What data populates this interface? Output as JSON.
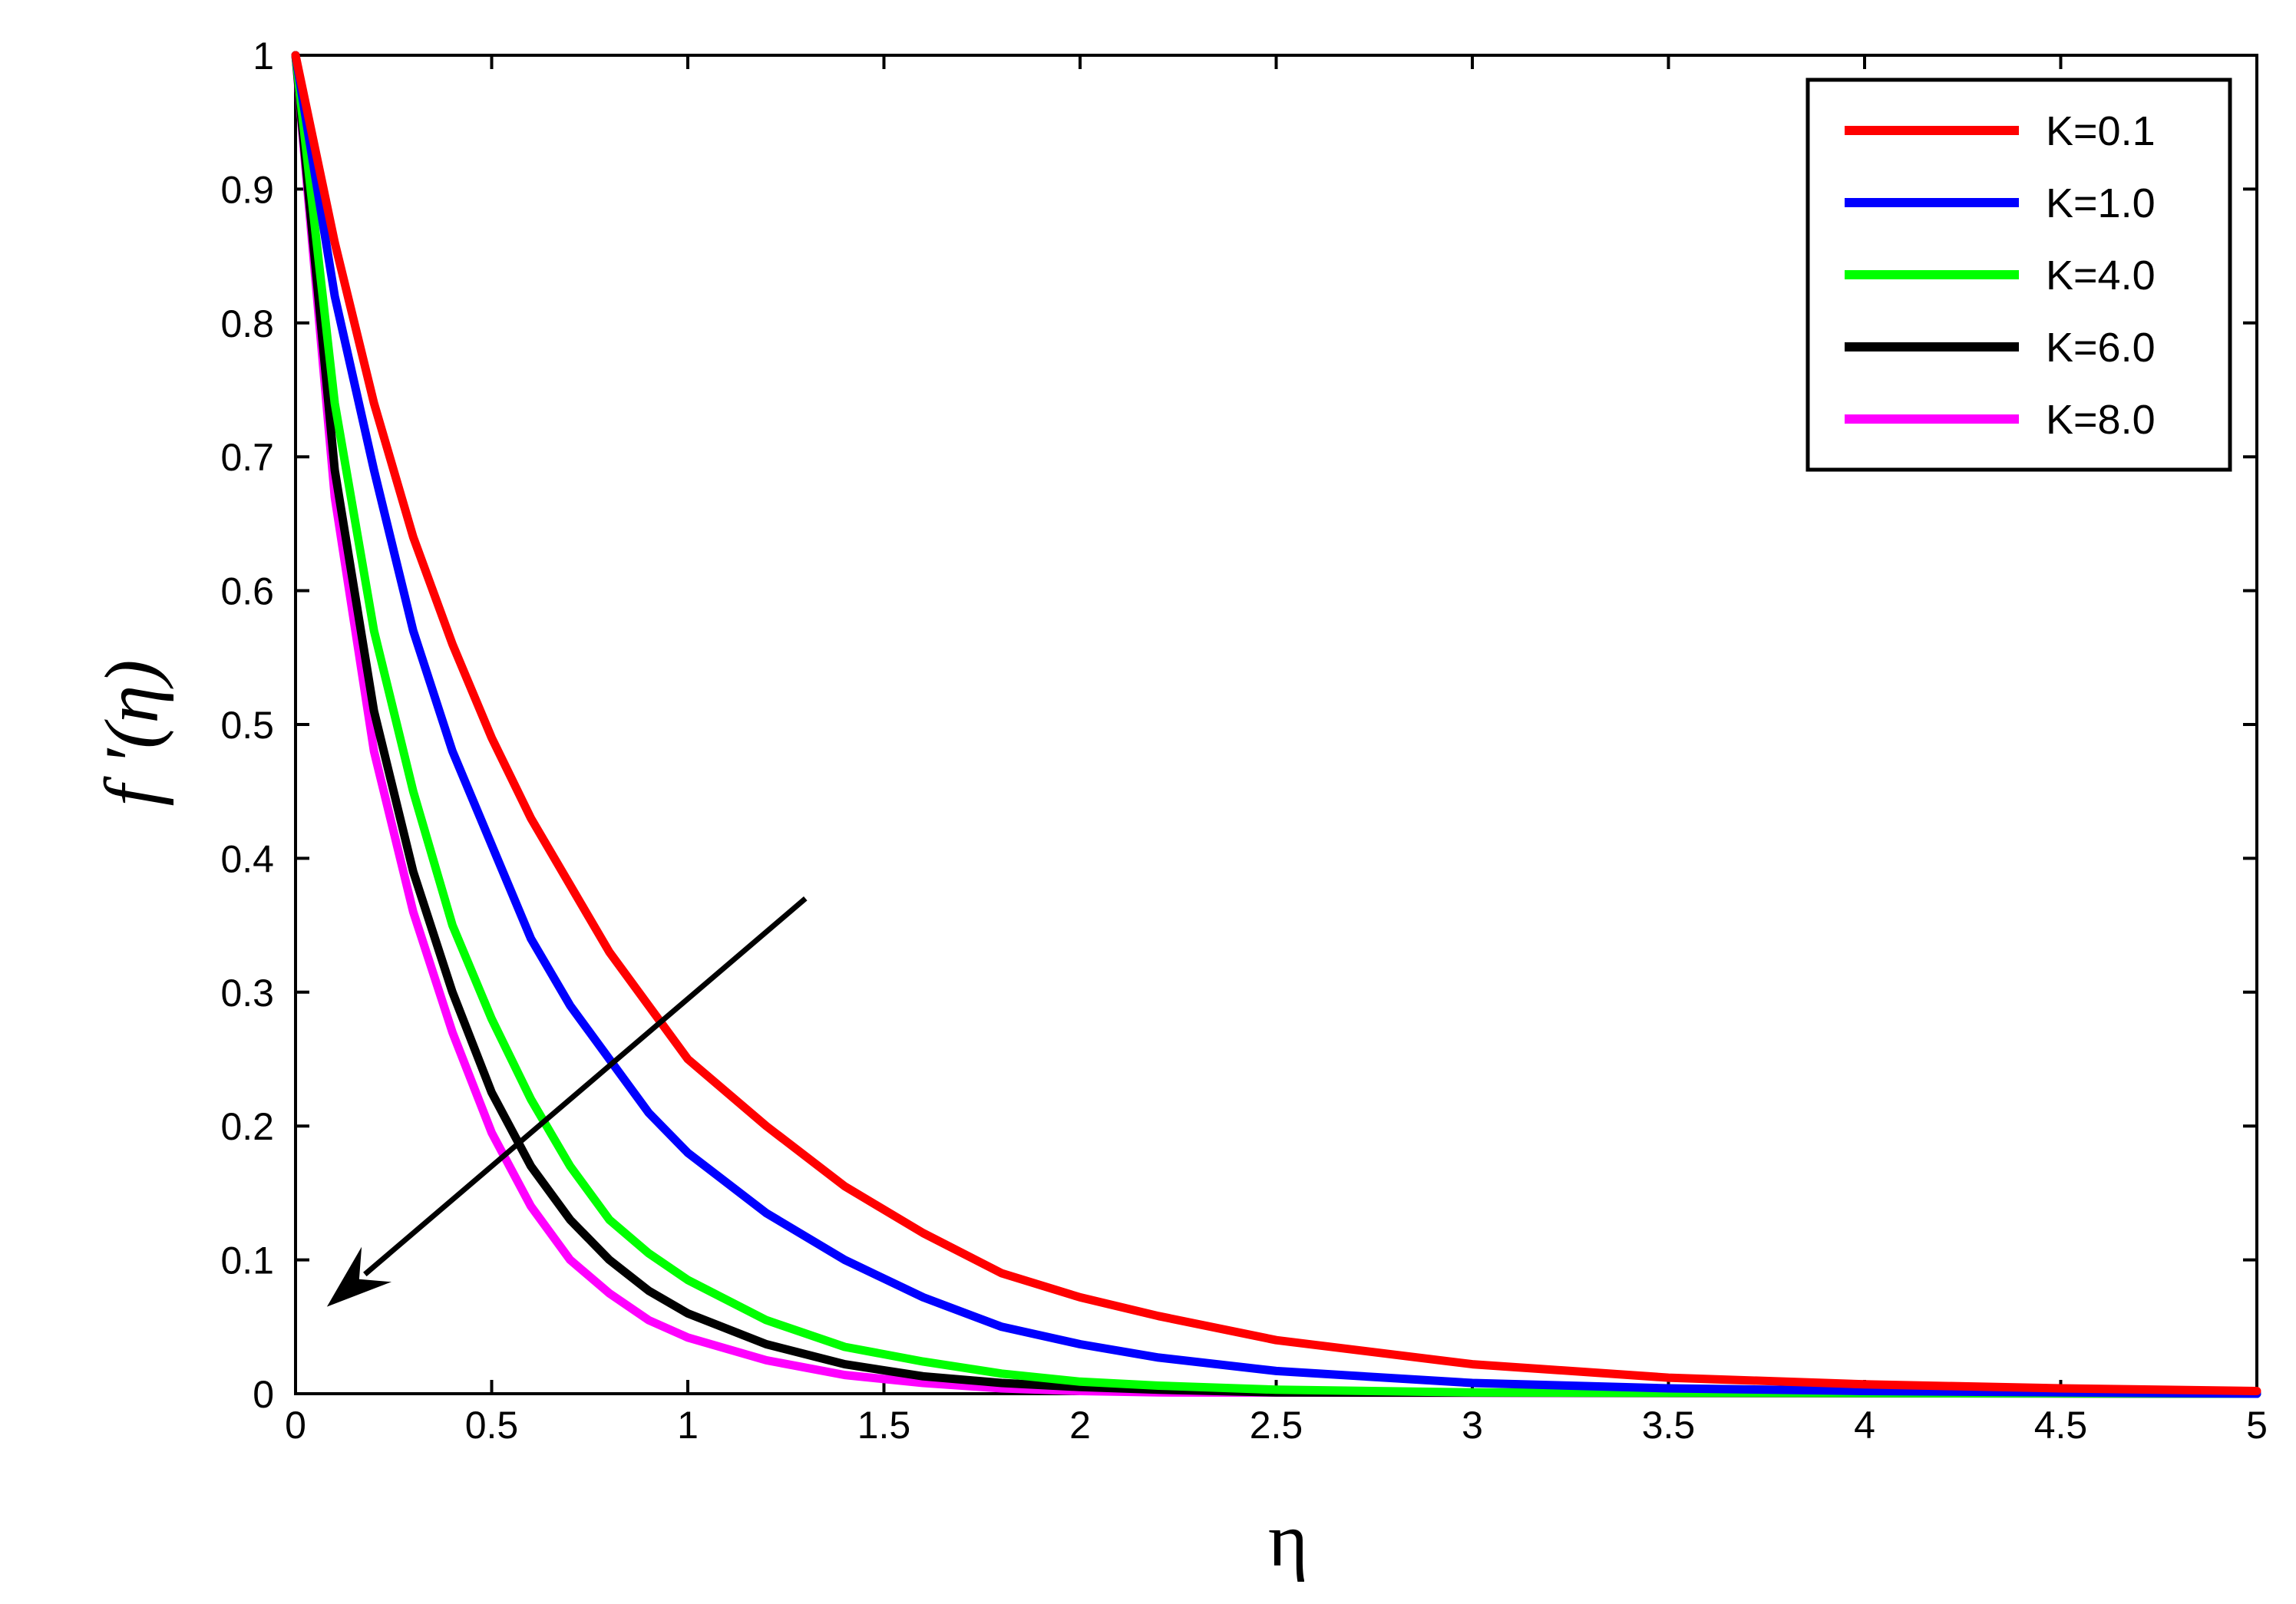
{
  "chart_data": {
    "type": "line",
    "title": "",
    "xlabel": "η",
    "ylabel": "f ′(η)",
    "xlim": [
      0,
      5
    ],
    "ylim": [
      0,
      1
    ],
    "grid": false,
    "legend_position": "top-right",
    "x_ticks": [
      "0",
      "0.5",
      "1",
      "1.5",
      "2",
      "2.5",
      "3",
      "3.5",
      "4",
      "4.5",
      "5"
    ],
    "y_ticks": [
      "0",
      "0.1",
      "0.2",
      "0.3",
      "0.4",
      "0.5",
      "0.6",
      "0.7",
      "0.8",
      "0.9",
      "1"
    ],
    "annotation": {
      "type": "arrow",
      "meaning": "increasing K",
      "from": [
        1.3,
        0.37
      ],
      "to": [
        0.08,
        0.065
      ]
    },
    "series": [
      {
        "name": "K=0.1",
        "color": "#ff0000",
        "x": [
          0,
          0.1,
          0.2,
          0.3,
          0.4,
          0.5,
          0.6,
          0.7,
          0.8,
          0.9,
          1.0,
          1.2,
          1.4,
          1.6,
          1.8,
          2.0,
          2.2,
          2.5,
          3.0,
          3.5,
          4.0,
          4.5,
          5.0
        ],
        "values": [
          1.0,
          0.86,
          0.74,
          0.64,
          0.56,
          0.49,
          0.43,
          0.38,
          0.33,
          0.29,
          0.25,
          0.2,
          0.155,
          0.12,
          0.09,
          0.072,
          0.058,
          0.04,
          0.022,
          0.012,
          0.007,
          0.004,
          0.002
        ]
      },
      {
        "name": "K=1.0",
        "color": "#0000ff",
        "x": [
          0,
          0.1,
          0.2,
          0.3,
          0.4,
          0.5,
          0.6,
          0.7,
          0.8,
          0.9,
          1.0,
          1.2,
          1.4,
          1.6,
          1.8,
          2.0,
          2.2,
          2.5,
          3.0,
          3.5,
          4.0,
          4.5,
          5.0
        ],
        "values": [
          1.0,
          0.82,
          0.69,
          0.57,
          0.48,
          0.41,
          0.34,
          0.29,
          0.25,
          0.21,
          0.18,
          0.135,
          0.1,
          0.072,
          0.05,
          0.037,
          0.027,
          0.017,
          0.008,
          0.004,
          0.002,
          0.001,
          0.0
        ]
      },
      {
        "name": "K=4.0",
        "color": "#00ff00",
        "x": [
          0,
          0.1,
          0.2,
          0.3,
          0.4,
          0.5,
          0.6,
          0.7,
          0.8,
          0.9,
          1.0,
          1.2,
          1.4,
          1.6,
          1.8,
          2.0,
          2.2,
          2.5,
          3.0,
          5.0
        ],
        "values": [
          1.0,
          0.74,
          0.57,
          0.45,
          0.35,
          0.28,
          0.22,
          0.17,
          0.13,
          0.105,
          0.085,
          0.055,
          0.035,
          0.024,
          0.015,
          0.009,
          0.006,
          0.003,
          0.001,
          0.0
        ]
      },
      {
        "name": "K=6.0",
        "color": "#000000",
        "x": [
          0,
          0.1,
          0.2,
          0.3,
          0.4,
          0.5,
          0.6,
          0.7,
          0.8,
          0.9,
          1.0,
          1.2,
          1.4,
          1.6,
          1.8,
          2.0,
          2.2,
          2.5,
          5.0
        ],
        "values": [
          1.0,
          0.69,
          0.51,
          0.39,
          0.3,
          0.225,
          0.17,
          0.13,
          0.1,
          0.077,
          0.06,
          0.037,
          0.022,
          0.013,
          0.008,
          0.005,
          0.003,
          0.001,
          0.0
        ]
      },
      {
        "name": "K=8.0",
        "color": "#ff00ff",
        "x": [
          0,
          0.1,
          0.2,
          0.3,
          0.4,
          0.5,
          0.6,
          0.7,
          0.8,
          0.9,
          1.0,
          1.2,
          1.4,
          1.6,
          1.8,
          2.0,
          2.2,
          5.0
        ],
        "values": [
          1.0,
          0.67,
          0.48,
          0.36,
          0.27,
          0.195,
          0.14,
          0.1,
          0.075,
          0.055,
          0.042,
          0.025,
          0.014,
          0.008,
          0.004,
          0.002,
          0.001,
          0.0
        ]
      }
    ]
  }
}
